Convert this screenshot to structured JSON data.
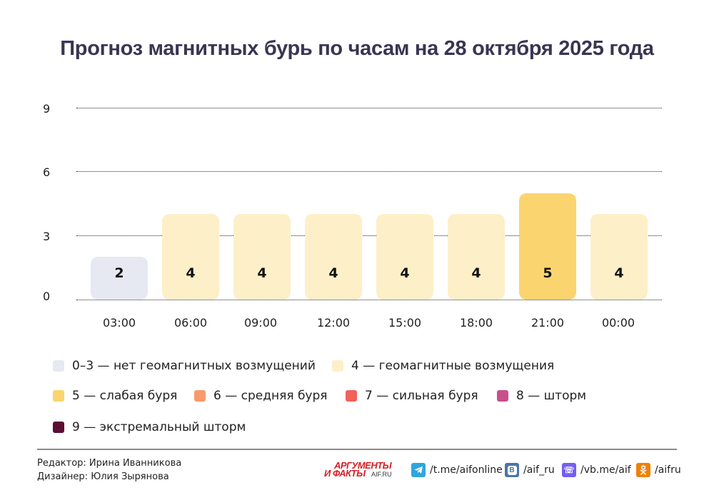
{
  "title": "Прогноз магнитных бурь по часам на 28 октября 2025 года",
  "chart_data": {
    "type": "bar",
    "title": "Прогноз магнитных бурь по часам на 28 октября 2025 года",
    "categories": [
      "03:00",
      "06:00",
      "09:00",
      "12:00",
      "15:00",
      "18:00",
      "21:00",
      "00:00"
    ],
    "values": [
      2,
      4,
      4,
      4,
      4,
      4,
      5,
      4
    ],
    "value_labels": [
      "2",
      "4",
      "4",
      "4",
      "4",
      "4",
      "5",
      "4"
    ],
    "bar_colors": [
      "#e6e9f2",
      "#fdefc8",
      "#fdefc8",
      "#fdefc8",
      "#fdefc8",
      "#fdefc8",
      "#fad56f",
      "#fdefc8"
    ],
    "xlabel": "",
    "ylabel": "",
    "ylim": [
      0,
      9
    ],
    "yticks": [
      "0",
      "3",
      "6",
      "9"
    ],
    "grid": true,
    "legend_position": "bottom",
    "legend": [
      {
        "label": "0–3 — нет геомагнитных возмущений",
        "color": "#e6e9f2"
      },
      {
        "label": "4 — геомагнитные возмущения",
        "color": "#fdefc8"
      },
      {
        "label": "5 — слабая буря",
        "color": "#fad56f"
      },
      {
        "label": "6 — средняя буря",
        "color": "#f99a6b"
      },
      {
        "label": "7 — сильная буря",
        "color": "#f0625a"
      },
      {
        "label": "8 — шторм",
        "color": "#c94e8c"
      },
      {
        "label": "9 — экстремальный шторм",
        "color": "#5a0f33"
      }
    ]
  },
  "footer": {
    "editor": "Редактор: Ирина Иванникова",
    "designer": "Дизайнер: Юлия Зырянова",
    "logo": {
      "line1": "АРГУМЕНТЫ",
      "line2": "И ФАКТЫ",
      "site": "AIF.RU"
    },
    "social": [
      {
        "icon": "telegram-icon",
        "label": "/t.me/aifonline",
        "color": "#2ea6de"
      },
      {
        "icon": "vk-icon",
        "label": "/aif_ru",
        "color": "#4a76a8"
      },
      {
        "icon": "viber-icon",
        "label": "/vb.me/aif",
        "color": "#7360f2"
      },
      {
        "icon": "odnoklassniki-icon",
        "label": "/aifru",
        "color": "#ee8208"
      }
    ]
  }
}
